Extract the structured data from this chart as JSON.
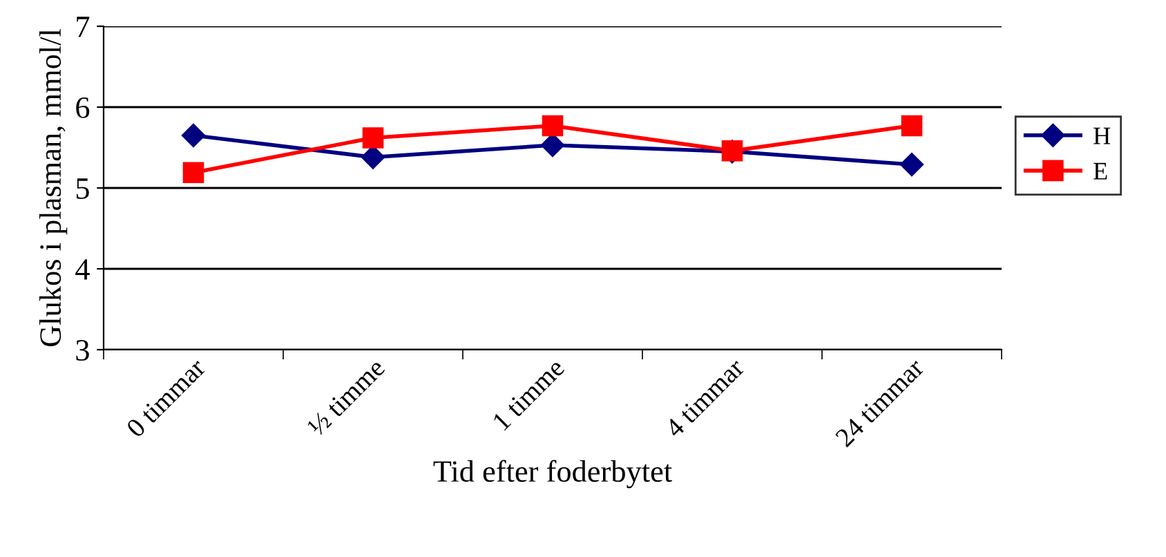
{
  "chart_data": {
    "type": "line",
    "xlabel": "Tid efter foderbytet",
    "ylabel": "Glukos i plasman, mmol/l",
    "categories": [
      "0 timmar",
      "½ timme",
      "1 timme",
      "4 timmar",
      "24 timmar"
    ],
    "series": [
      {
        "name": "H",
        "color": "#000080",
        "values": [
          5.65,
          5.38,
          5.53,
          5.45,
          5.29
        ],
        "marker": "diamond"
      },
      {
        "name": "E",
        "color": "#ff0000",
        "values": [
          5.19,
          5.62,
          5.77,
          5.46,
          5.77
        ],
        "marker": "square"
      }
    ],
    "ylim": [
      3,
      7
    ],
    "yticks": [
      3,
      4,
      5,
      6,
      7
    ],
    "grid": "y",
    "legend": "right",
    "line_style": "solid"
  }
}
